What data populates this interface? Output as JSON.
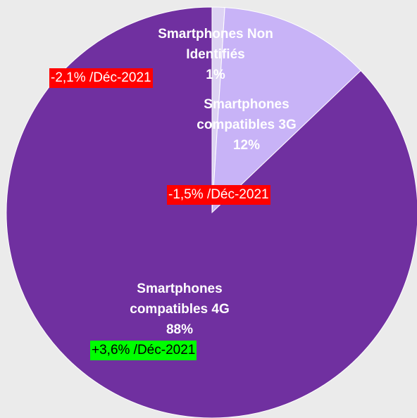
{
  "chart_data": {
    "type": "pie",
    "categories": [
      "Smartphones Non Identifiés",
      "Smartphones compatibles 3G",
      "Smartphones compatibles 4G"
    ],
    "values": [
      1,
      12,
      88
    ],
    "value_labels": [
      "1%",
      "12%",
      "88%"
    ],
    "colors": [
      "#ddd3f3",
      "#c8b3f7",
      "#7030a0"
    ],
    "annotations": [
      {
        "text": "-2,1% /Déc-2021",
        "background": "#ff0000"
      },
      {
        "text": "-1,5% /Déc-2021",
        "background": "#ff0000"
      },
      {
        "text": "+3,6% /Déc-2021",
        "background": "#00ff00"
      }
    ]
  }
}
